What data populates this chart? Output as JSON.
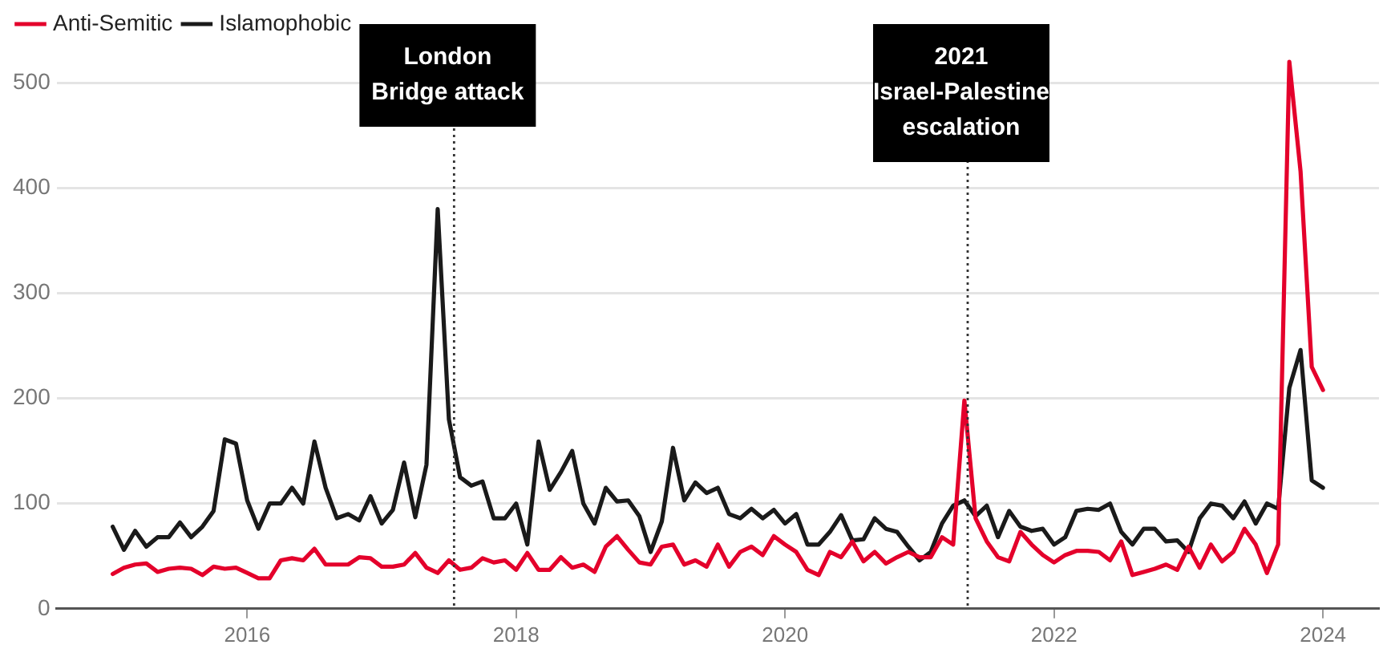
{
  "chart_data": {
    "type": "line",
    "x": [
      "2015-01",
      "2015-02",
      "2015-03",
      "2015-04",
      "2015-05",
      "2015-06",
      "2015-07",
      "2015-08",
      "2015-09",
      "2015-10",
      "2015-11",
      "2015-12",
      "2016-01",
      "2016-02",
      "2016-03",
      "2016-04",
      "2016-05",
      "2016-06",
      "2016-07",
      "2016-08",
      "2016-09",
      "2016-10",
      "2016-11",
      "2016-12",
      "2017-01",
      "2017-02",
      "2017-03",
      "2017-04",
      "2017-05",
      "2017-06",
      "2017-07",
      "2017-08",
      "2017-09",
      "2017-10",
      "2017-11",
      "2017-12",
      "2018-01",
      "2018-02",
      "2018-03",
      "2018-04",
      "2018-05",
      "2018-06",
      "2018-07",
      "2018-08",
      "2018-09",
      "2018-10",
      "2018-11",
      "2018-12",
      "2019-01",
      "2019-02",
      "2019-03",
      "2019-04",
      "2019-05",
      "2019-06",
      "2019-07",
      "2019-08",
      "2019-09",
      "2019-10",
      "2019-11",
      "2019-12",
      "2020-01",
      "2020-02",
      "2020-03",
      "2020-04",
      "2020-05",
      "2020-06",
      "2020-07",
      "2020-08",
      "2020-09",
      "2020-10",
      "2020-11",
      "2020-12",
      "2021-01",
      "2021-02",
      "2021-03",
      "2021-04",
      "2021-05",
      "2021-06",
      "2021-07",
      "2021-08",
      "2021-09",
      "2021-10",
      "2021-11",
      "2021-12",
      "2022-01",
      "2022-02",
      "2022-03",
      "2022-04",
      "2022-05",
      "2022-06",
      "2022-07",
      "2022-08",
      "2022-09",
      "2022-10",
      "2022-11",
      "2022-12",
      "2023-01",
      "2023-02",
      "2023-03",
      "2023-04",
      "2023-05",
      "2023-06",
      "2023-07",
      "2023-08",
      "2023-09",
      "2023-10",
      "2023-11",
      "2023-12",
      "2024-01"
    ],
    "series": [
      {
        "name": "Anti-Semitic",
        "color": "#e4002b",
        "values": [
          33,
          39,
          42,
          43,
          35,
          38,
          39,
          38,
          32,
          40,
          38,
          39,
          34,
          29,
          29,
          46,
          48,
          46,
          57,
          42,
          42,
          42,
          49,
          48,
          40,
          40,
          42,
          53,
          39,
          34,
          46,
          37,
          39,
          48,
          44,
          46,
          37,
          53,
          37,
          37,
          49,
          39,
          42,
          35,
          59,
          69,
          56,
          44,
          42,
          59,
          61,
          42,
          46,
          40,
          61,
          40,
          54,
          59,
          51,
          69,
          61,
          54,
          37,
          32,
          54,
          49,
          64,
          45,
          54,
          43,
          49,
          54,
          49,
          49,
          68,
          61,
          198,
          86,
          64,
          49,
          45,
          73,
          61,
          51,
          44,
          51,
          55,
          55,
          54,
          46,
          64,
          32,
          35,
          38,
          42,
          37,
          59,
          39,
          61,
          45,
          54,
          76,
          61,
          34,
          61,
          520,
          416,
          230,
          208
        ]
      },
      {
        "name": "Islamophobic",
        "color": "#1a1a1a",
        "values": [
          78,
          56,
          74,
          59,
          68,
          68,
          82,
          68,
          78,
          93,
          161,
          157,
          103,
          76,
          100,
          100,
          115,
          100,
          159,
          115,
          86,
          90,
          84,
          107,
          81,
          94,
          139,
          87,
          137,
          380,
          180,
          125,
          117,
          121,
          86,
          86,
          100,
          61,
          159,
          113,
          130,
          150,
          100,
          81,
          115,
          102,
          103,
          88,
          54,
          83,
          153,
          103,
          120,
          110,
          115,
          90,
          86,
          95,
          86,
          94,
          81,
          90,
          61,
          61,
          73,
          89,
          65,
          66,
          86,
          76,
          73,
          59,
          46,
          54,
          81,
          98,
          103,
          88,
          98,
          68,
          93,
          78,
          74,
          76,
          61,
          68,
          93,
          95,
          94,
          100,
          73,
          61,
          76,
          76,
          64,
          65,
          54,
          86,
          100,
          98,
          86,
          102,
          81,
          100,
          95,
          210,
          246,
          122,
          115
        ]
      }
    ],
    "xlim": [
      "2014-08",
      "2024-06"
    ],
    "xticks": [
      "2016",
      "2018",
      "2020",
      "2022",
      "2024"
    ],
    "ylim": [
      0,
      530
    ],
    "yticks": [
      0,
      100,
      200,
      300,
      400,
      500
    ],
    "ref_lines": [
      {
        "axis": "x",
        "value": "2017-07-15",
        "label": "London Bridge attack",
        "line_style": "dotted",
        "color": "#333333"
      },
      {
        "axis": "x",
        "value": "2021-05-10",
        "label": "2021 Israel-Palestine escalation",
        "line_style": "dotted",
        "color": "#333333"
      }
    ],
    "grid": "y",
    "legend": "top left",
    "marker": "none",
    "line_style": "solid"
  }
}
